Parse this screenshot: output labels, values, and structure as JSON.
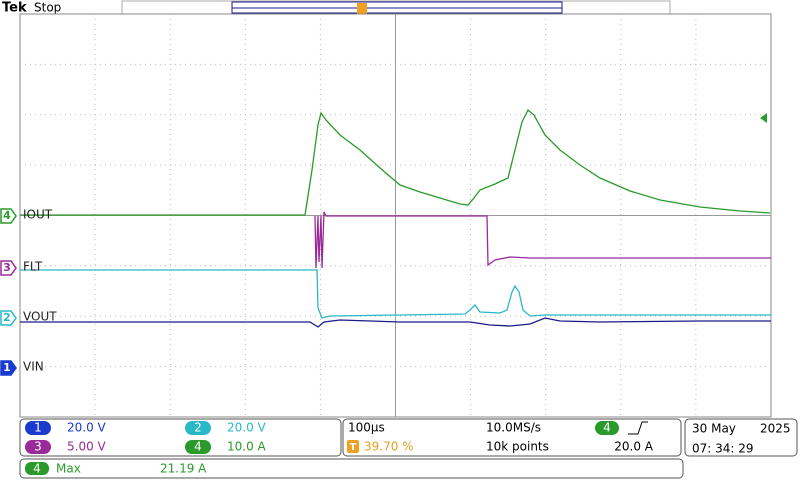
{
  "header": {
    "brand": "Tek",
    "status": "Stop",
    "trigger_marker": "T"
  },
  "channels": [
    {
      "number": "4",
      "label": "IOUT"
    },
    {
      "number": "3",
      "label": "FLT"
    },
    {
      "number": "2",
      "label": "VOUT"
    },
    {
      "number": "1",
      "label": "VIN"
    }
  ],
  "scales": [
    {
      "channel": "1",
      "value": "20.0 V"
    },
    {
      "channel": "2",
      "value": "20.0 V"
    },
    {
      "channel": "3",
      "value": "5.00 V"
    },
    {
      "channel": "4",
      "value": "10.0 A"
    }
  ],
  "timebase": {
    "time_per_div": "100µs",
    "sample_rate": "10.0MS/s",
    "record_length": "10k points",
    "trigger_channel": "4",
    "trigger_level": "20.0 A",
    "trigger_icon": "T",
    "trigger_position": "39.70 %"
  },
  "datetime": {
    "date": "30 May",
    "year": "2025",
    "time": "07: 34: 29"
  },
  "measurement": {
    "channel": "4",
    "name": "Max",
    "value": "21.19 A"
  }
}
